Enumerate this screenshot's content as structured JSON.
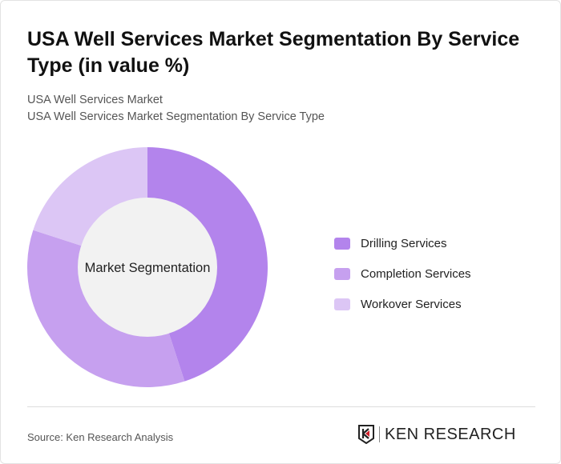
{
  "title": "USA Well Services Market Segmentation By Service Type (in value %)",
  "subtitle1": "USA Well Services Market",
  "subtitle2": "USA Well Services Market Segmentation By Service Type",
  "chart_data": {
    "type": "pie",
    "donut": true,
    "center_label": "Market Segmentation",
    "categories": [
      "Drilling Services",
      "Completion Services",
      "Workover Services"
    ],
    "values": [
      45,
      35,
      20
    ],
    "colors": [
      "#b384ec",
      "#c6a0ef",
      "#dcc6f5"
    ],
    "legend_position": "right"
  },
  "source": "Source: Ken Research Analysis",
  "logo": "KEN RESEARCH"
}
